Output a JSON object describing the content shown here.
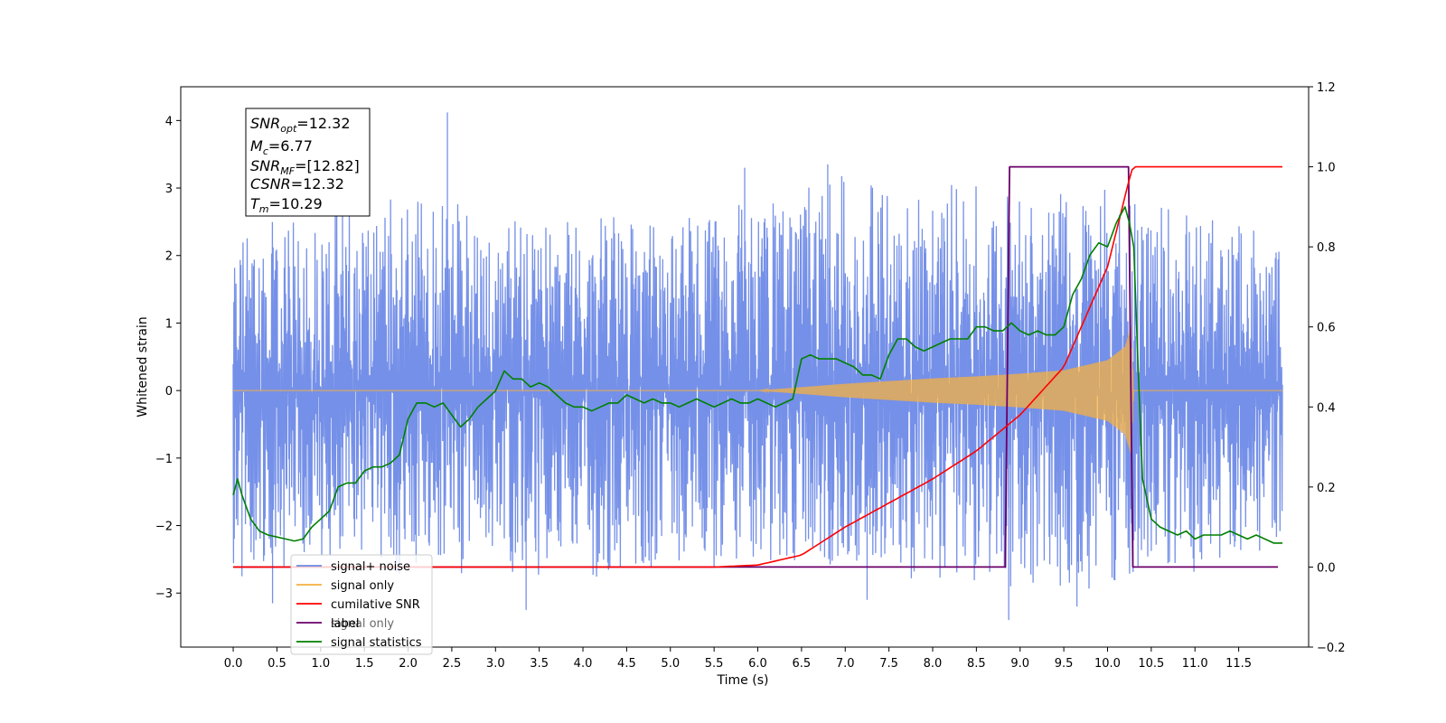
{
  "chart_data": {
    "type": "line",
    "xlabel": "Time (s)",
    "ylabel": "Whitened strain",
    "xlim": [
      -0.6,
      12.3
    ],
    "ylim": [
      -3.8,
      4.5
    ],
    "y2lim": [
      -0.2,
      1.2
    ],
    "grid": false,
    "x_ticks": [
      "0.0",
      "0.5",
      "1.0",
      "1.5",
      "2.0",
      "2.5",
      "3.0",
      "3.5",
      "4.0",
      "4.5",
      "5.0",
      "5.5",
      "6.0",
      "6.5",
      "7.0",
      "7.5",
      "8.0",
      "8.5",
      "9.0",
      "9.5",
      "10.0",
      "10.5",
      "11.0",
      "11.5"
    ],
    "y_ticks": [
      "4",
      "3",
      "2",
      "1",
      "0",
      "−1",
      "−2",
      "−3"
    ],
    "y2_ticks": [
      "1.2",
      "1.0",
      "0.8",
      "0.6",
      "0.4",
      "0.2",
      "0.0",
      "−0.2"
    ],
    "annotation": {
      "lines": [
        {
          "main": "SNR",
          "sub": "opt",
          "value": "=12.32"
        },
        {
          "main": "M",
          "sub": "c",
          "value": "=6.77"
        },
        {
          "main": "SNR",
          "sub": "MF",
          "value": "=[12.82]"
        },
        {
          "main": "CSNR",
          "sub": "",
          "value": "=12.32"
        },
        {
          "main": "T",
          "sub": "m",
          "value": "=10.29"
        }
      ]
    },
    "legend": {
      "placement": "lower-left",
      "entries": [
        {
          "label": "signal+ noise",
          "color": "#6a8ae6"
        },
        {
          "label": "signal only",
          "color": "#f5b041"
        },
        {
          "label": "cumilative SNR",
          "color": "#ff0000"
        },
        {
          "label": "label",
          "color": "#6a006a"
        },
        {
          "label": "signal statistics",
          "color": "#008000"
        }
      ],
      "hidden_text": {
        "label": "signal only",
        "color": "#c0c0c0"
      }
    },
    "series": [
      {
        "name": "signal+ noise",
        "axis": "left",
        "color": "#7590e8",
        "x_range": [
          0.0,
          12.0
        ],
        "envelope_upper": {
          "x": [
            0,
            1,
            2,
            3,
            4,
            5,
            6,
            7,
            8,
            9,
            10,
            11,
            12
          ],
          "y": [
            2.4,
            2.6,
            3.0,
            2.6,
            2.5,
            2.6,
            2.8,
            3.2,
            3.0,
            3.0,
            3.0,
            2.6,
            2.2
          ]
        },
        "envelope_lower": {
          "x": [
            0,
            1,
            2,
            3,
            4,
            5,
            6,
            7,
            8,
            9,
            10,
            11,
            12
          ],
          "y": [
            -2.6,
            -2.5,
            -2.8,
            -2.6,
            -2.8,
            -2.6,
            -2.6,
            -2.6,
            -2.8,
            -3.0,
            -2.8,
            -2.6,
            -2.3
          ]
        },
        "spikes": [
          {
            "x": 2.45,
            "y": 4.12
          },
          {
            "x": 0.1,
            "y": -2.75
          },
          {
            "x": 3.35,
            "y": -3.25
          },
          {
            "x": 8.87,
            "y": -3.4
          },
          {
            "x": 9.65,
            "y": -3.2
          },
          {
            "x": 1.25,
            "y": 3.0
          },
          {
            "x": 6.8,
            "y": 3.35
          },
          {
            "x": 7.25,
            "y": -3.1
          },
          {
            "x": 5.85,
            "y": 3.3
          },
          {
            "x": 0.45,
            "y": -3.15
          }
        ]
      },
      {
        "name": "signal only",
        "axis": "left",
        "color": "#f5b041",
        "x": [
          0,
          6.0,
          6.5,
          7.0,
          7.5,
          8.0,
          8.5,
          9.0,
          9.5,
          10.0,
          10.2,
          10.27,
          10.3,
          12.0
        ],
        "amplitude": [
          0,
          0,
          0.05,
          0.1,
          0.14,
          0.18,
          0.21,
          0.25,
          0.3,
          0.45,
          0.65,
          0.95,
          0,
          0
        ]
      },
      {
        "name": "cumilative SNR",
        "axis": "right",
        "color": "#ff0000",
        "x": [
          0,
          5.5,
          6.0,
          6.5,
          7.0,
          7.5,
          8.0,
          8.5,
          9.0,
          9.5,
          10.0,
          10.25,
          10.29,
          12.0
        ],
        "y": [
          0,
          0,
          0.005,
          0.03,
          0.1,
          0.16,
          0.22,
          0.29,
          0.38,
          0.5,
          0.75,
          0.97,
          1.0,
          1.0
        ]
      },
      {
        "name": "label",
        "axis": "right",
        "color": "#6a006a",
        "x": [
          0,
          8.83,
          8.88,
          10.24,
          10.29,
          11.95
        ],
        "y": [
          0,
          0,
          1,
          1,
          0,
          0
        ]
      },
      {
        "name": "signal statistics",
        "axis": "right",
        "color": "#008000",
        "x": [
          0,
          0.05,
          0.1,
          0.2,
          0.3,
          0.4,
          0.5,
          0.6,
          0.7,
          0.8,
          0.9,
          1.0,
          1.1,
          1.2,
          1.3,
          1.4,
          1.5,
          1.6,
          1.7,
          1.8,
          1.9,
          2.0,
          2.1,
          2.2,
          2.3,
          2.4,
          2.5,
          2.6,
          2.7,
          2.8,
          2.9,
          3.0,
          3.1,
          3.2,
          3.3,
          3.4,
          3.5,
          3.6,
          3.7,
          3.8,
          3.9,
          4.0,
          4.1,
          4.2,
          4.3,
          4.4,
          4.5,
          4.6,
          4.7,
          4.8,
          4.9,
          5.0,
          5.1,
          5.2,
          5.3,
          5.4,
          5.5,
          5.6,
          5.7,
          5.8,
          5.9,
          6.0,
          6.1,
          6.2,
          6.3,
          6.4,
          6.5,
          6.6,
          6.7,
          6.8,
          6.9,
          7.0,
          7.1,
          7.2,
          7.3,
          7.4,
          7.5,
          7.6,
          7.7,
          7.8,
          7.9,
          8.0,
          8.1,
          8.2,
          8.3,
          8.4,
          8.5,
          8.6,
          8.7,
          8.8,
          8.9,
          9.0,
          9.1,
          9.2,
          9.3,
          9.4,
          9.5,
          9.6,
          9.7,
          9.8,
          9.9,
          10.0,
          10.1,
          10.15,
          10.2,
          10.25,
          10.3,
          10.35,
          10.4,
          10.5,
          10.6,
          10.7,
          10.8,
          10.9,
          11.0,
          11.1,
          11.2,
          11.3,
          11.4,
          11.5,
          11.6,
          11.7,
          11.8,
          11.9,
          12.0
        ],
        "y": [
          0.18,
          0.22,
          0.18,
          0.12,
          0.09,
          0.08,
          0.075,
          0.07,
          0.065,
          0.07,
          0.1,
          0.12,
          0.14,
          0.2,
          0.21,
          0.21,
          0.24,
          0.25,
          0.25,
          0.26,
          0.28,
          0.37,
          0.41,
          0.41,
          0.4,
          0.41,
          0.38,
          0.35,
          0.37,
          0.4,
          0.42,
          0.44,
          0.49,
          0.47,
          0.47,
          0.45,
          0.46,
          0.45,
          0.43,
          0.41,
          0.4,
          0.4,
          0.39,
          0.4,
          0.41,
          0.41,
          0.43,
          0.42,
          0.41,
          0.42,
          0.41,
          0.41,
          0.4,
          0.41,
          0.42,
          0.41,
          0.4,
          0.41,
          0.42,
          0.41,
          0.41,
          0.42,
          0.41,
          0.4,
          0.41,
          0.42,
          0.52,
          0.53,
          0.52,
          0.52,
          0.52,
          0.51,
          0.5,
          0.48,
          0.48,
          0.47,
          0.53,
          0.57,
          0.57,
          0.55,
          0.54,
          0.55,
          0.56,
          0.57,
          0.57,
          0.57,
          0.6,
          0.6,
          0.59,
          0.59,
          0.61,
          0.59,
          0.58,
          0.59,
          0.58,
          0.58,
          0.6,
          0.68,
          0.72,
          0.78,
          0.81,
          0.8,
          0.86,
          0.88,
          0.9,
          0.86,
          0.8,
          0.5,
          0.22,
          0.12,
          0.1,
          0.09,
          0.08,
          0.09,
          0.07,
          0.08,
          0.08,
          0.08,
          0.09,
          0.08,
          0.07,
          0.08,
          0.07,
          0.06,
          0.06
        ]
      }
    ]
  }
}
